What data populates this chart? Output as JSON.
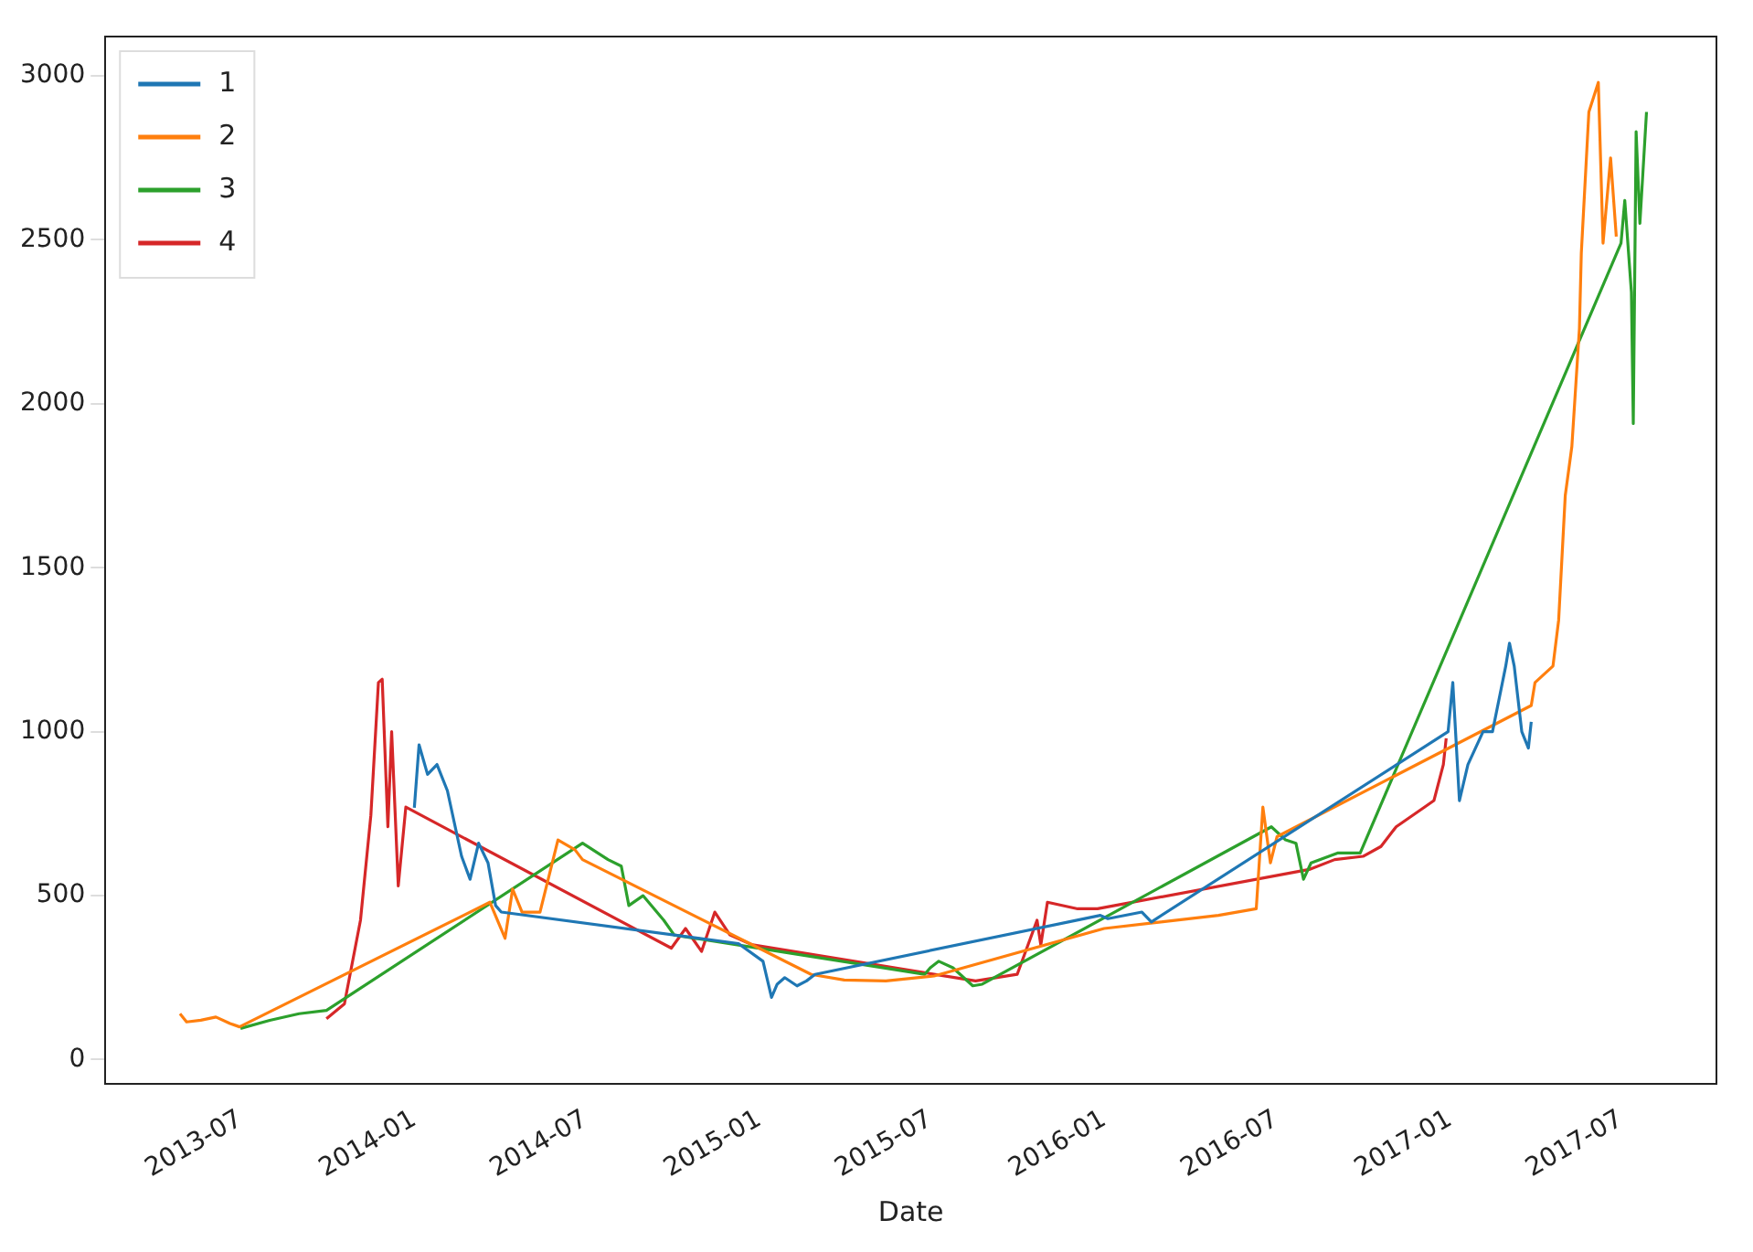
{
  "chart_data": {
    "type": "line",
    "xlabel": "Date",
    "xlim": [
      "2013-02-08",
      "2017-10-10"
    ],
    "ylim": [
      -75,
      3120
    ],
    "xticks": [
      "2013-07",
      "2014-01",
      "2014-07",
      "2015-01",
      "2015-07",
      "2016-01",
      "2016-07",
      "2017-01",
      "2017-07"
    ],
    "yticks": [
      0,
      500,
      1000,
      1500,
      2000,
      2500,
      3000
    ],
    "grid": false,
    "legend": "top left",
    "marker": "none",
    "line_style": "solid",
    "series": [
      {
        "name": "1",
        "color": "#1f77b4",
        "x": [
          "2014-01-01",
          "2014-01-06",
          "2014-01-15",
          "2014-01-25",
          "2014-02-05",
          "2014-02-20",
          "2014-03-01",
          "2014-03-10",
          "2014-03-20",
          "2014-03-28",
          "2014-04-03",
          "2014-12-10",
          "2015-01-05",
          "2015-01-14",
          "2015-01-20",
          "2015-01-28",
          "2015-02-10",
          "2015-02-20",
          "2015-03-01",
          "2015-12-28",
          "2016-01-05",
          "2016-02-10",
          "2016-02-20",
          "2016-12-30",
          "2017-01-04",
          "2017-01-11",
          "2017-01-20",
          "2017-02-05",
          "2017-02-15",
          "2017-03-01",
          "2017-03-05",
          "2017-03-10",
          "2017-03-18",
          "2017-03-25",
          "2017-03-28"
        ],
        "values": [
          768,
          960,
          870,
          900,
          820,
          620,
          550,
          660,
          600,
          470,
          450,
          354,
          300,
          190,
          230,
          250,
          225,
          240,
          260,
          440,
          430,
          450,
          420,
          1000,
          1150,
          790,
          900,
          1000,
          1000,
          1200,
          1270,
          1200,
          1000,
          950,
          1030
        ]
      },
      {
        "name": "2",
        "color": "#ff7f0e",
        "x": [
          "2013-04-28",
          "2013-05-05",
          "2013-05-20",
          "2013-06-05",
          "2013-06-20",
          "2013-06-30",
          "2014-03-22",
          "2014-04-07",
          "2014-04-15",
          "2014-04-25",
          "2014-05-14",
          "2014-06-02",
          "2014-06-20",
          "2014-06-28",
          "2015-02-25",
          "2015-04-01",
          "2015-05-15",
          "2015-07-05",
          "2016-01-01",
          "2016-03-01",
          "2016-05-01",
          "2016-06-10",
          "2016-06-17",
          "2016-06-25",
          "2016-07-02",
          "2017-03-28",
          "2017-04-01",
          "2017-04-20",
          "2017-04-26",
          "2017-05-03",
          "2017-05-10",
          "2017-05-18",
          "2017-05-20",
          "2017-05-28",
          "2017-06-07",
          "2017-06-12",
          "2017-06-20",
          "2017-06-26"
        ],
        "values": [
          140,
          115,
          120,
          130,
          110,
          100,
          480,
          370,
          520,
          450,
          450,
          670,
          640,
          610,
          260,
          243,
          240,
          255,
          400,
          420,
          440,
          460,
          770,
          600,
          680,
          1080,
          1150,
          1200,
          1340,
          1720,
          1870,
          2230,
          2460,
          2890,
          2980,
          2490,
          2750,
          2510
        ]
      },
      {
        "name": "3",
        "color": "#2ca02c",
        "x": [
          "2013-07-01",
          "2013-08-01",
          "2013-09-01",
          "2013-09-30",
          "2014-06-28",
          "2014-07-25",
          "2014-08-08",
          "2014-08-16",
          "2014-08-31",
          "2014-09-22",
          "2014-10-03",
          "2015-06-25",
          "2015-07-01",
          "2015-07-10",
          "2015-07-25",
          "2015-08-15",
          "2015-08-25",
          "2016-06-26",
          "2016-07-11",
          "2016-07-22",
          "2016-07-30",
          "2016-08-07",
          "2016-09-04",
          "2016-09-28",
          "2017-07-01",
          "2017-07-05",
          "2017-07-12",
          "2017-07-14",
          "2017-07-17",
          "2017-07-21",
          "2017-07-28"
        ],
        "values": [
          95,
          120,
          140,
          150,
          660,
          610,
          590,
          470,
          500,
          425,
          380,
          260,
          280,
          300,
          280,
          225,
          230,
          710,
          670,
          660,
          550,
          600,
          630,
          630,
          2490,
          2620,
          2340,
          1940,
          2830,
          2550,
          2890
        ]
      },
      {
        "name": "4",
        "color": "#d62728",
        "x": [
          "2013-09-30",
          "2013-10-19",
          "2013-11-05",
          "2013-11-16",
          "2013-11-24",
          "2013-11-28",
          "2013-12-04",
          "2013-12-08",
          "2013-12-15",
          "2013-12-23",
          "2014-09-30",
          "2014-10-15",
          "2014-11-01",
          "2014-11-15",
          "2014-12-01",
          "2014-12-25",
          "2015-08-18",
          "2015-10-01",
          "2015-10-22",
          "2015-10-26",
          "2015-11-02",
          "2015-12-04",
          "2015-12-25",
          "2016-08-05",
          "2016-09-01",
          "2016-10-01",
          "2016-10-20",
          "2016-11-05",
          "2016-11-20",
          "2016-12-05",
          "2016-12-15",
          "2016-12-25",
          "2016-12-28"
        ],
        "values": [
          125,
          170,
          425,
          745,
          1150,
          1160,
          710,
          1000,
          530,
          770,
          340,
          400,
          330,
          450,
          380,
          350,
          240,
          260,
          425,
          350,
          480,
          460,
          460,
          580,
          610,
          620,
          650,
          710,
          740,
          770,
          790,
          900,
          980
        ]
      }
    ]
  }
}
